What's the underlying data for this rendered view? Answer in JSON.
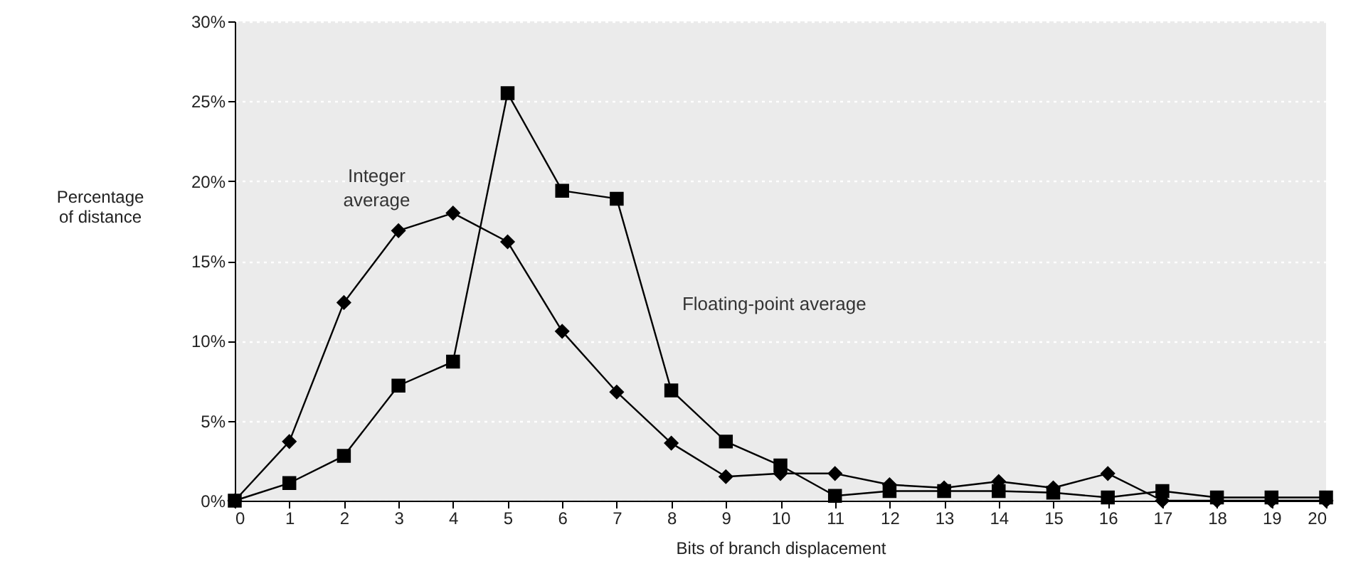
{
  "chart_data": {
    "type": "line",
    "xlabel": "Bits of branch displacement",
    "ylabel": "Percentage of distance",
    "x": [
      0,
      1,
      2,
      3,
      4,
      5,
      6,
      7,
      8,
      9,
      10,
      11,
      12,
      13,
      14,
      15,
      16,
      17,
      18,
      19,
      20
    ],
    "series": [
      {
        "name": "Integer average",
        "color": "#000000",
        "marker": "diamond",
        "values": [
          0,
          3.7,
          12.4,
          16.9,
          18.0,
          16.2,
          10.6,
          6.8,
          3.6,
          1.5,
          1.7,
          1.7,
          1.0,
          0.8,
          1.2,
          0.8,
          1.7,
          0,
          0,
          0,
          0
        ]
      },
      {
        "name": "Floating-point average",
        "color": "#000000",
        "marker": "square",
        "values": [
          0,
          1.1,
          2.8,
          7.2,
          8.7,
          25.5,
          19.4,
          18.9,
          6.9,
          3.7,
          2.2,
          0.3,
          0.6,
          0.6,
          0.6,
          0.5,
          0.2,
          0.6,
          0.2,
          0.2,
          0.2
        ]
      }
    ],
    "xlim": [
      0,
      20
    ],
    "xticks": [
      0,
      1,
      2,
      3,
      4,
      5,
      6,
      7,
      8,
      9,
      10,
      11,
      12,
      13,
      14,
      15,
      16,
      17,
      18,
      19,
      20
    ],
    "ylim": [
      0,
      30
    ],
    "yticks": [
      {
        "value": 0,
        "label": "0%"
      },
      {
        "value": 5,
        "label": "5%"
      },
      {
        "value": 10,
        "label": "10%"
      },
      {
        "value": 15,
        "label": "15%"
      },
      {
        "value": 20,
        "label": "20%"
      },
      {
        "value": 25,
        "label": "25%"
      },
      {
        "value": 30,
        "label": "30%"
      }
    ],
    "grid": "y"
  }
}
